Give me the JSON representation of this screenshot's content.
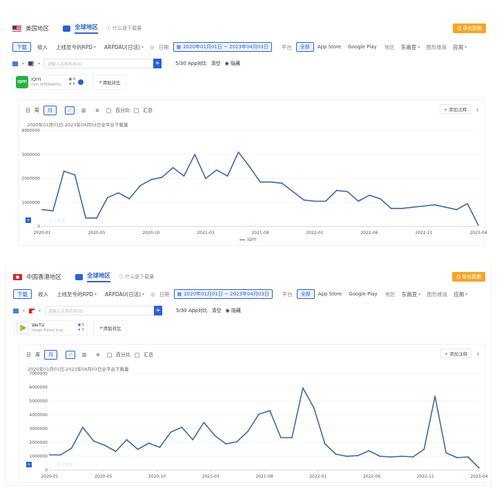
{
  "panels": [
    {
      "header": {
        "region_label": "美国地区",
        "global_label": "全球地区",
        "whatis_label": "什么是下载量",
        "export_label": "导出数据"
      },
      "filters": {
        "download": "下载",
        "revenue": "收入",
        "rpd": "上线至今的RPD",
        "arpdau": "ARPDAU(日活)",
        "date_label": "日期",
        "date_range": "2020年01月01日 ~ 2023年04月03日",
        "platform_label": "平台",
        "platform_all": "全部",
        "app_store": "App Store",
        "google_play": "Google Play",
        "area_label": "地区",
        "area_value": "东南亚",
        "dim_label": "图形维度",
        "dim_value": "应用"
      },
      "search": {
        "placeholder": "请输入应用名称/ID",
        "compare_count": "5/30 App对比",
        "clear": "清空",
        "hide": "隐藏"
      },
      "app": {
        "icon_text": "iQIYI",
        "name": "iQIYI",
        "developer": "iQIYI INTERNATIO...",
        "meta_a": "4",
        "meta_b": "4",
        "add_compare": "添加对比"
      },
      "chart_toolbar": {
        "day": "日",
        "week": "周",
        "month": "月",
        "percent": "百分比",
        "summary": "汇总",
        "annotate": "添加注释"
      },
      "chart_subtitle": "2020年01月01日-2023年04月03日全平台下载量",
      "legend": "iQIYI",
      "watermark": "点点数据"
    },
    {
      "header": {
        "region_label": "中国香港地区",
        "global_label": "全球地区",
        "whatis_label": "什么是下载量",
        "export_label": "导出数据"
      },
      "filters": {
        "download": "下载",
        "revenue": "收入",
        "rpd": "上线至今的RPD",
        "arpdau": "ARPDAU(日活)",
        "date_label": "日期",
        "date_range": "2020年01月01日 ~ 2023年04月03日",
        "platform_label": "平台",
        "platform_all": "全部",
        "app_store": "App Store",
        "google_play": "Google Play",
        "area_label": "地区",
        "area_value": "东南亚",
        "dim_label": "图形维度",
        "dim_value": "应用"
      },
      "search": {
        "placeholder": "请输入应用名称/ID",
        "compare_count": "5/30 App对比",
        "clear": "清空",
        "hide": "隐藏"
      },
      "app": {
        "icon_text": "",
        "name": "WeTV",
        "developer": "Image Future Inve...",
        "meta_a": "5",
        "meta_b": "3",
        "add_compare": "添加对比"
      },
      "chart_toolbar": {
        "day": "日",
        "week": "周",
        "month": "月",
        "percent": "百分比",
        "summary": "汇总",
        "annotate": "添加注释"
      },
      "chart_subtitle": "2020年01月01日-2023年04月03日全平台下载量",
      "legend": "",
      "watermark": "点点数据"
    }
  ],
  "colors": {
    "line": "#3b64a6",
    "accent": "#2b5fd9",
    "export": "#f5a623"
  },
  "chart_data": [
    {
      "type": "line",
      "y_ticks": [
        0,
        1000000,
        2000000,
        3000000,
        4000000
      ],
      "ylim": [
        0,
        4000000
      ],
      "x_tick_labels": [
        "2020-01",
        "2020-05",
        "2020-10",
        "2021-03",
        "2021-08",
        "2022-01",
        "2022-06",
        "2022-11",
        "2023-04"
      ],
      "series": [
        {
          "name": "iQIYI",
          "values": [
            700000,
            650000,
            2300000,
            2150000,
            350000,
            350000,
            1200000,
            1400000,
            1150000,
            1700000,
            1950000,
            2050000,
            2450000,
            2100000,
            3000000,
            2000000,
            2350000,
            2100000,
            3100000,
            2500000,
            1850000,
            1850000,
            1800000,
            1450000,
            1100000,
            1050000,
            1050000,
            1500000,
            1450000,
            1050000,
            1300000,
            1150000,
            750000,
            750000,
            800000,
            850000,
            900000,
            800000,
            700000,
            950000,
            50000
          ]
        }
      ]
    },
    {
      "type": "line",
      "y_ticks": [
        0,
        1000000,
        2000000,
        3000000,
        4000000,
        5000000,
        6000000,
        7000000
      ],
      "ylim": [
        0,
        7000000
      ],
      "x_tick_labels": [
        "2020-01",
        "2020-05",
        "2020-10",
        "2021-03",
        "2021-08",
        "2022-01",
        "2022-06",
        "2022-11",
        "2023-04"
      ],
      "series": [
        {
          "name": "",
          "values": [
            1100000,
            1100000,
            1600000,
            3100000,
            2100000,
            1800000,
            1350000,
            2200000,
            1500000,
            1950000,
            1650000,
            2750000,
            3100000,
            2200000,
            3450000,
            2500000,
            1900000,
            2050000,
            2800000,
            4050000,
            4300000,
            2350000,
            2350000,
            5950000,
            4500000,
            1900000,
            1150000,
            1000000,
            1050000,
            1400000,
            1000000,
            950000,
            1000000,
            950000,
            1500000,
            5350000,
            1250000,
            900000,
            950000,
            150000
          ]
        }
      ]
    }
  ]
}
